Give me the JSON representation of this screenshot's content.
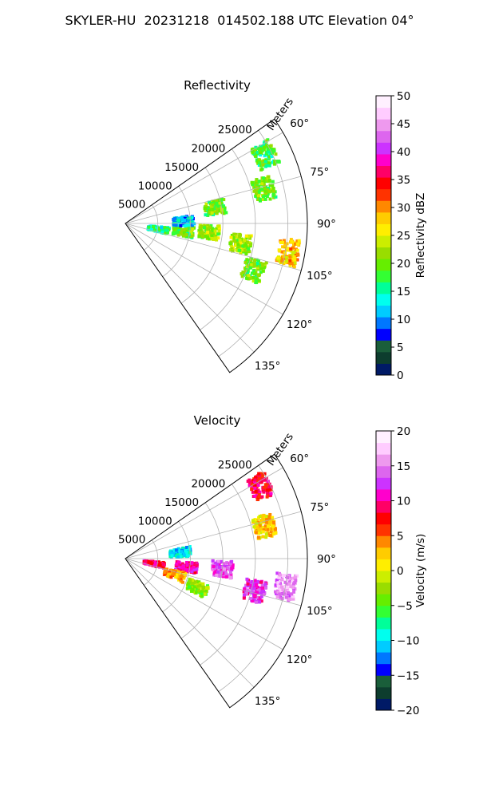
{
  "title": "SKYLER-HU  20231218  014502.188 UTC Elevation 04°",
  "chart_data": [
    {
      "type": "heatmap",
      "projection": "polar-sector",
      "title": "Reflectivity",
      "radial_label": "Meters",
      "theta_range_deg": [
        55,
        145
      ],
      "r_max_m": 28000,
      "r_ticks": [
        "5000",
        "10000",
        "15000",
        "20000",
        "25000"
      ],
      "theta_ticks": [
        "60°",
        "75°",
        "90°",
        "105°",
        "120°",
        "135°"
      ],
      "grid": true,
      "colorbar": {
        "label": "Reflectivity dBZ",
        "range": [
          0,
          50
        ],
        "ticks": [
          "0",
          "5",
          "10",
          "15",
          "20",
          "25",
          "30",
          "35",
          "40",
          "45",
          "50"
        ],
        "colors": [
          "#001a66",
          "#0d3d2e",
          "#1a5e3a",
          "#0000ff",
          "#0077ff",
          "#00ccff",
          "#00ffee",
          "#00ff99",
          "#33ff33",
          "#66ee00",
          "#99dd00",
          "#ccee00",
          "#ffee00",
          "#ffcc00",
          "#ff8800",
          "#ff3300",
          "#ff0000",
          "#ff0066",
          "#ff00cc",
          "#cc33ff",
          "#dd66ee",
          "#ee99ee",
          "#ffccff",
          "#fff0ff"
        ]
      },
      "echoes": [
        {
          "theta_deg": 100,
          "r_m": 5200,
          "dbz": 16
        },
        {
          "theta_deg": 98,
          "r_m": 9000,
          "dbz": 20
        },
        {
          "theta_deg": 96,
          "r_m": 13000,
          "dbz": 22
        },
        {
          "theta_deg": 100,
          "r_m": 18000,
          "dbz": 22
        },
        {
          "theta_deg": 110,
          "r_m": 21000,
          "dbz": 20
        },
        {
          "theta_deg": 100,
          "r_m": 25500,
          "dbz": 28
        },
        {
          "theta_deg": 76,
          "r_m": 22000,
          "dbz": 20
        },
        {
          "theta_deg": 80,
          "r_m": 14000,
          "dbz": 20
        },
        {
          "theta_deg": 64,
          "r_m": 24000,
          "dbz": 18
        },
        {
          "theta_deg": 88,
          "r_m": 9000,
          "dbz": 12
        }
      ]
    },
    {
      "type": "heatmap",
      "projection": "polar-sector",
      "title": "Velocity",
      "radial_label": "Meters",
      "theta_range_deg": [
        55,
        145
      ],
      "r_max_m": 28000,
      "r_ticks": [
        "5000",
        "10000",
        "15000",
        "20000",
        "25000"
      ],
      "theta_ticks": [
        "60°",
        "75°",
        "90°",
        "105°",
        "120°",
        "135°"
      ],
      "grid": true,
      "colorbar": {
        "label": "Velocity (m/s)",
        "range": [
          -20,
          20
        ],
        "ticks": [
          "−20",
          "−15",
          "−10",
          "−5",
          "0",
          "5",
          "10",
          "15",
          "20"
        ],
        "colors": [
          "#001a66",
          "#0d3d2e",
          "#1a5e3a",
          "#0000ff",
          "#0077ff",
          "#00ccff",
          "#00ffee",
          "#00ff99",
          "#33ff33",
          "#66ee00",
          "#99dd00",
          "#ccee00",
          "#ffee00",
          "#ffcc00",
          "#ff8800",
          "#ff3300",
          "#ff0000",
          "#ff0066",
          "#ff00cc",
          "#cc33ff",
          "#dd66ee",
          "#ee99ee",
          "#ffccff",
          "#fff0ff"
        ]
      },
      "echoes": [
        {
          "theta_deg": 100,
          "r_m": 4500,
          "v": 9
        },
        {
          "theta_deg": 98,
          "r_m": 9500,
          "v": 10
        },
        {
          "theta_deg": 108,
          "r_m": 8000,
          "v": 3
        },
        {
          "theta_deg": 96,
          "r_m": 15000,
          "v": 13
        },
        {
          "theta_deg": 104,
          "r_m": 20500,
          "v": 12
        },
        {
          "theta_deg": 100,
          "r_m": 25000,
          "v": 15
        },
        {
          "theta_deg": 77,
          "r_m": 22000,
          "v": 2
        },
        {
          "theta_deg": 62,
          "r_m": 23500,
          "v": 8
        },
        {
          "theta_deg": 84,
          "r_m": 8500,
          "v": -10
        },
        {
          "theta_deg": 112,
          "r_m": 12000,
          "v": -3
        }
      ]
    }
  ]
}
